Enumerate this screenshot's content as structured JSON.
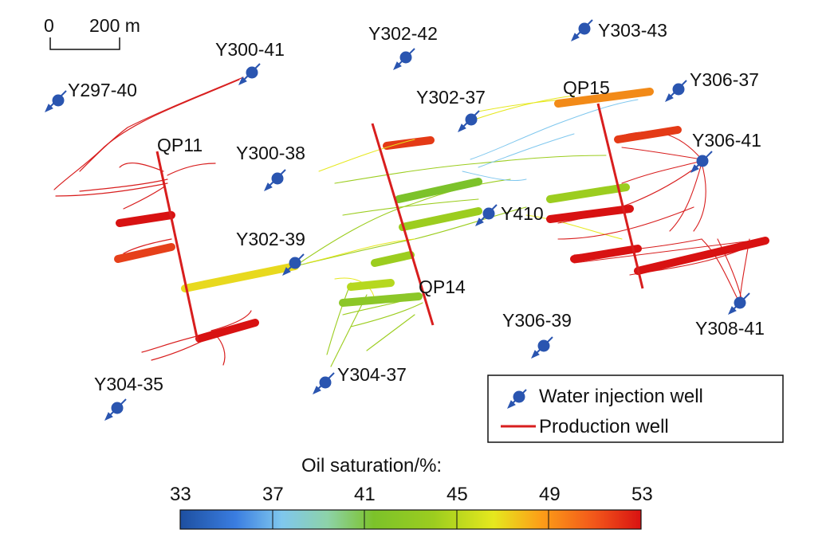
{
  "scale_bar": {
    "zero": "0",
    "length": "200 m"
  },
  "wells": {
    "injection": [
      {
        "id": "Y297-40"
      },
      {
        "id": "Y300-41"
      },
      {
        "id": "Y302-42"
      },
      {
        "id": "Y303-43"
      },
      {
        "id": "Y306-37"
      },
      {
        "id": "Y302-37"
      },
      {
        "id": "Y300-38"
      },
      {
        "id": "Y306-41"
      },
      {
        "id": "Y410"
      },
      {
        "id": "Y302-39"
      },
      {
        "id": "Y308-41"
      },
      {
        "id": "Y306-39"
      },
      {
        "id": "Y304-37"
      },
      {
        "id": "Y304-35"
      }
    ],
    "production": [
      {
        "id": "QP11"
      },
      {
        "id": "QP14"
      },
      {
        "id": "QP15"
      }
    ]
  },
  "legend": {
    "injection_label": "Water injection well",
    "production_label": "Production well"
  },
  "colorbar": {
    "title": "Oil saturation/%:",
    "ticks": [
      "33",
      "37",
      "41",
      "45",
      "49",
      "53"
    ],
    "min": 33,
    "max": 53
  },
  "colors": {
    "injection_well": "#2a55b0",
    "production_well": "#d81e1e",
    "text": "#111111"
  }
}
